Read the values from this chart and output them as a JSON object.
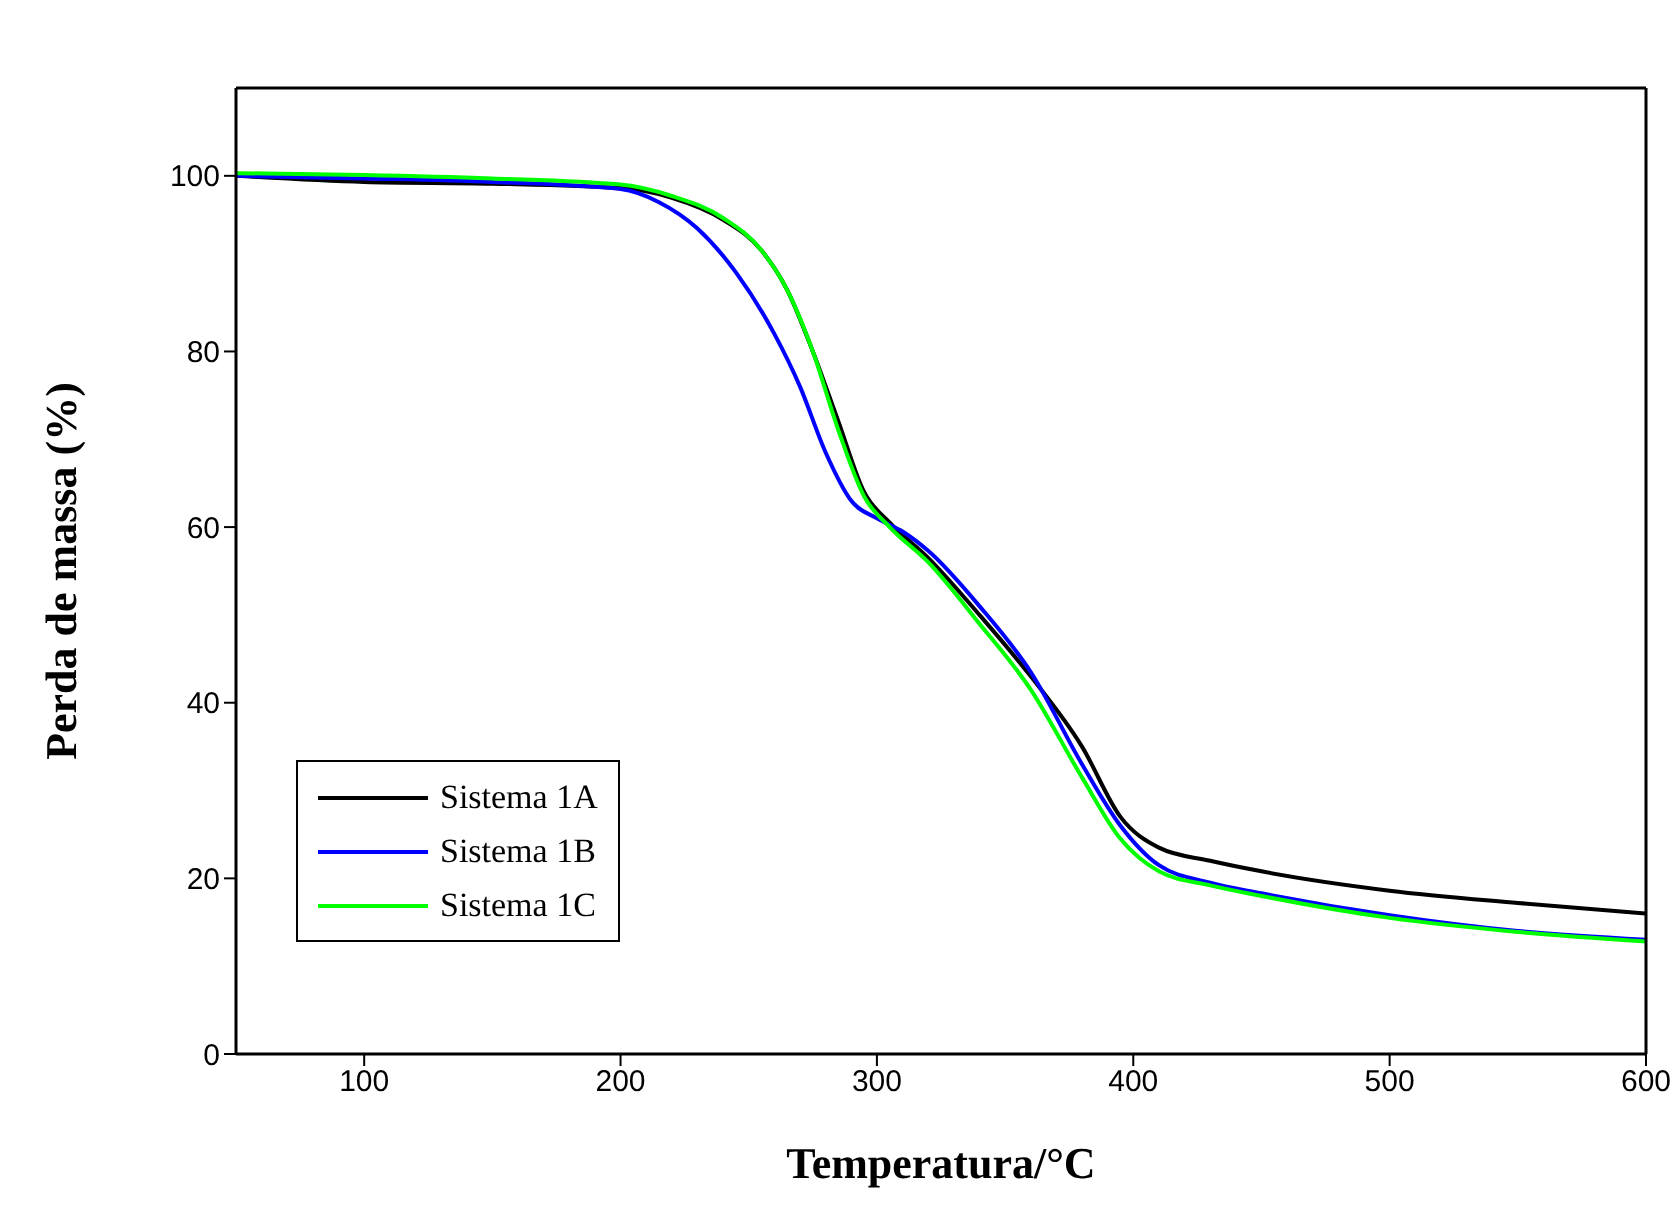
{
  "chart_data": {
    "type": "line",
    "xlabel": "Temperatura/°C",
    "ylabel": "Perda de massa (%)",
    "xlim": [
      50,
      600
    ],
    "ylim": [
      0,
      110
    ],
    "xticks": [
      100,
      200,
      300,
      400,
      500,
      600
    ],
    "yticks": [
      0,
      20,
      40,
      60,
      80,
      100
    ],
    "grid": false,
    "legend": "bottom left",
    "marker": "none",
    "line_style": "solid",
    "series": [
      {
        "name": "Sistema 1A",
        "color": "#000000",
        "x": [
          50,
          100,
          150,
          200,
          220,
          240,
          255,
          265,
          275,
          285,
          295,
          305,
          320,
          340,
          360,
          380,
          395,
          410,
          430,
          450,
          500,
          550,
          600
        ],
        "values": [
          100,
          99.3,
          99.1,
          98.6,
          97.5,
          95,
          91.5,
          87,
          80,
          72,
          64,
          60.5,
          56.5,
          50,
          43,
          35,
          27,
          23.5,
          22,
          20.8,
          18.6,
          17.2,
          16
        ]
      },
      {
        "name": "Sistema 1B",
        "color": "#0000ff",
        "x": [
          50,
          100,
          150,
          200,
          215,
          230,
          245,
          260,
          270,
          280,
          290,
          300,
          310,
          320,
          340,
          360,
          380,
          395,
          410,
          430,
          450,
          500,
          550,
          600
        ],
        "values": [
          100,
          99.7,
          99.3,
          98.5,
          97,
          94,
          89,
          82,
          76,
          68.5,
          63,
          61,
          59.5,
          57.3,
          51,
          43.5,
          33,
          26,
          21.5,
          19.5,
          18.3,
          15.8,
          14,
          13
        ]
      },
      {
        "name": "Sistema 1C",
        "color": "#00ff00",
        "x": [
          50,
          100,
          150,
          200,
          220,
          240,
          255,
          265,
          275,
          285,
          295,
          305,
          320,
          340,
          360,
          380,
          395,
          410,
          430,
          450,
          500,
          550,
          600
        ],
        "values": [
          100.3,
          100.1,
          99.7,
          99,
          97.7,
          95.2,
          91.5,
          87,
          80,
          71,
          63.5,
          60,
          56,
          49,
          41.5,
          31.5,
          24.5,
          20.8,
          19.2,
          18,
          15.5,
          13.9,
          12.8
        ]
      }
    ]
  }
}
